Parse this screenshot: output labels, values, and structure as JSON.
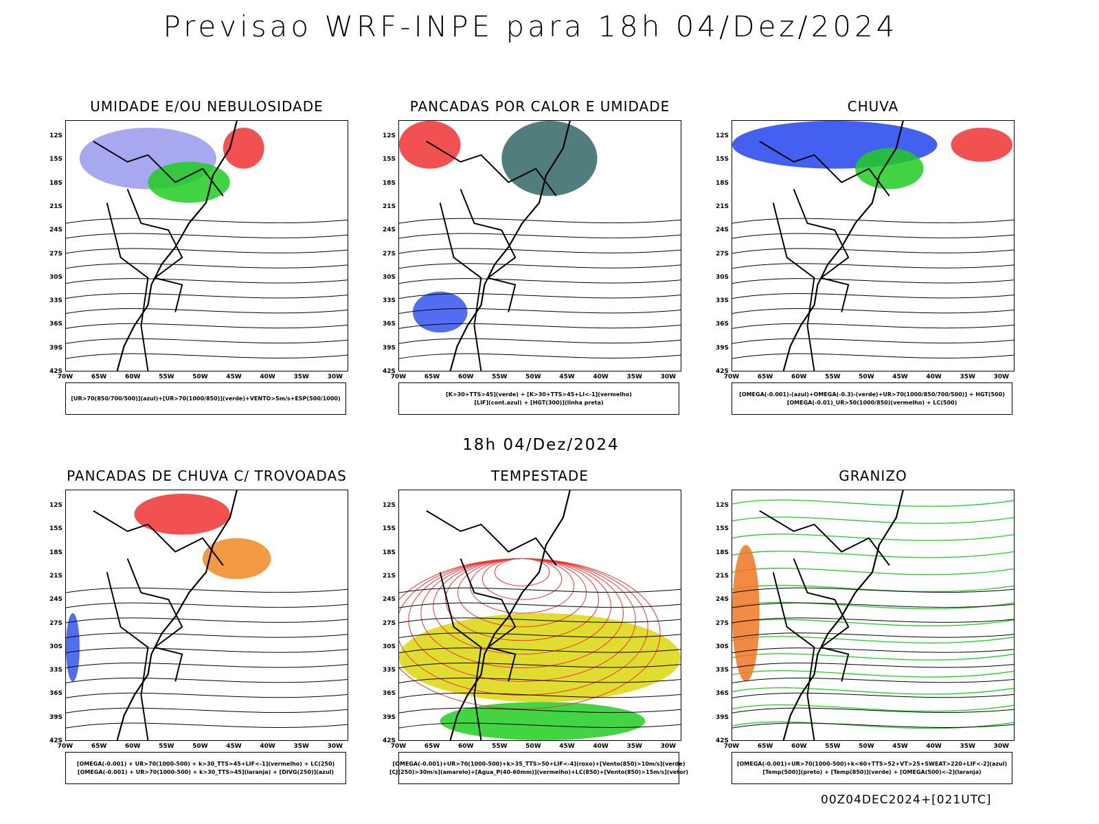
{
  "title": "Previsao WRF-INPE  para 18h 04/Dez/2024",
  "subtitle": "18h 04/Dez/2024",
  "footer": "00Z04DEC2024+[021UTC]",
  "lat_ticks": [
    "12S",
    "15S",
    "18S",
    "21S",
    "24S",
    "27S",
    "30S",
    "33S",
    "36S",
    "39S",
    "42S"
  ],
  "lon_ticks": [
    "70W",
    "65W",
    "60W",
    "55W",
    "50W",
    "45W",
    "40W",
    "35W",
    "30W"
  ],
  "panels": [
    {
      "title": "UMIDADE E/OU NEBULOSIDADE",
      "legend": [
        "[UR>70(850/700/500)](azul)+[UR>70(1000/850)](verde)+VENTO>5m/s+ESP(500/1000)"
      ],
      "fills": [
        "#9999ee",
        "#22cc22",
        "#ee3333"
      ]
    },
    {
      "title": "PANCADAS POR CALOR E UMIDADE",
      "legend": [
        "[K>30+TTS>45](verde) + [K>30+TTS>45+LI<-1](vermelho)",
        "[LIF](cont.azul) + [HGT(300)](linha preta)"
      ],
      "fills": [
        "#ee3333",
        "#336666",
        "#3355ee"
      ]
    },
    {
      "title": "CHUVA",
      "legend": [
        "[OMEGA(-0.001)-(azul)+OMEGA(-0.3)-(verde)+UR>70(1000/850/700/500)] + HGT(500)",
        "[OMEGA(-0.01)_UR>50(1000/850)(vermelho) + LC(500)"
      ],
      "fills": [
        "#2244ee",
        "#22cc22",
        "#ee3333"
      ]
    },
    {
      "title": "PANCADAS DE CHUVA C/ TROVOADAS",
      "legend": [
        "[OMEGA(-0.001) + UR>70(1000-500) + k>30_TTS>45+LIF<-1](vermelho) + LC(250)",
        "[OMEGA(-0.001) + UR>70(1000-500) + k>30_TTS>45](laranja) + [DIVG(250)](azul)"
      ],
      "fills": [
        "#ee3333",
        "#ee8822",
        "#3355ee"
      ]
    },
    {
      "title": "TEMPESTADE",
      "legend": [
        "[OMEGA(-0.001)+UR>70(1000-500)+k>35_TTS>50+LIF<-4](roxo)+[Vento(850)>10m/s](verde)",
        "[CJ(250)>30m/s](amarelo)+[Agua_P(40-60mm)](vermelho)+LC(850)+[Vento(850)>15m/s](vetor)"
      ],
      "fills": [
        "#e0dc30",
        "#22cc22",
        "#ee3333"
      ]
    },
    {
      "title": "GRANIZO",
      "legend": [
        "[OMEGA(-0.001)+UR>70(1000-500)+k<60+TTS>52+VT>25+SWEAT>220+LIF<-2](azul)",
        "[Temp(500)](preto) + [Temp(850)](verde) + [OMEGA(500)<-2](laranja)"
      ],
      "fills": [
        "#22cc22",
        "#ee7722",
        "#22cc22"
      ]
    }
  ]
}
